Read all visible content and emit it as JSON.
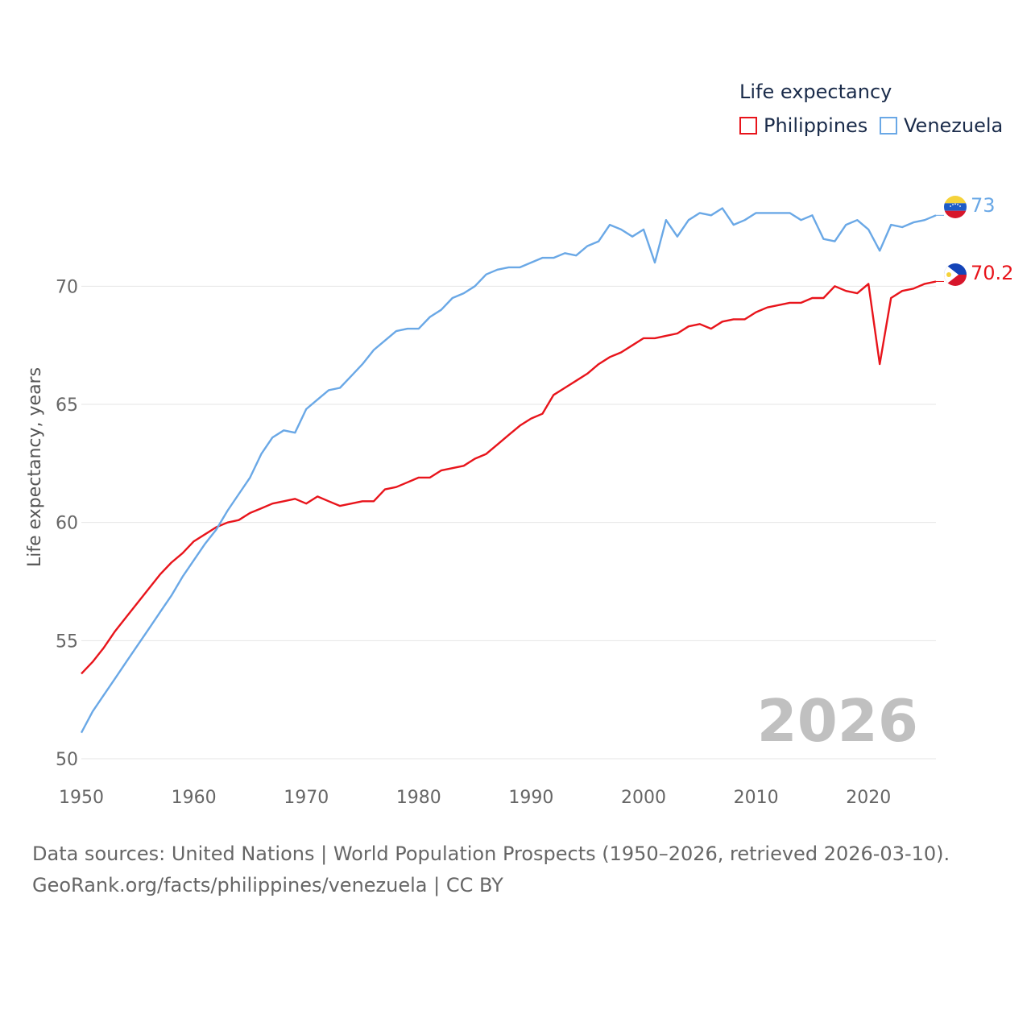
{
  "legend": {
    "title": "Life expectancy",
    "items": [
      {
        "label": "Philippines",
        "color": "#e8141b"
      },
      {
        "label": "Venezuela",
        "color": "#6aa8e6"
      }
    ]
  },
  "year_watermark": "2026",
  "source_line_1": "Data sources: United Nations | World Population Prospects (1950–2026, retrieved 2026-03-10).",
  "source_line_2": "GeoRank.org/facts/philippines/venezuela | CC BY",
  "end_labels": {
    "venezuela": "73",
    "philippines": "70.2"
  },
  "chart_data": {
    "type": "line",
    "title": "Life expectancy",
    "xlabel": "",
    "ylabel": "Life expectancy, years",
    "xlim": [
      1950,
      2026
    ],
    "ylim": [
      50,
      74
    ],
    "x_ticks": [
      1950,
      1960,
      1970,
      1980,
      1990,
      2000,
      2010,
      2020
    ],
    "y_ticks": [
      50,
      55,
      60,
      65,
      70
    ],
    "grid": true,
    "legend_position": "top-right",
    "series": [
      {
        "name": "Philippines",
        "color": "#e8141b",
        "points": [
          [
            1950,
            53.6
          ],
          [
            1951,
            54.1
          ],
          [
            1952,
            54.7
          ],
          [
            1953,
            55.4
          ],
          [
            1954,
            56.0
          ],
          [
            1955,
            56.6
          ],
          [
            1956,
            57.2
          ],
          [
            1957,
            57.8
          ],
          [
            1958,
            58.3
          ],
          [
            1959,
            58.7
          ],
          [
            1960,
            59.2
          ],
          [
            1961,
            59.5
          ],
          [
            1962,
            59.8
          ],
          [
            1963,
            60.0
          ],
          [
            1964,
            60.1
          ],
          [
            1965,
            60.4
          ],
          [
            1966,
            60.6
          ],
          [
            1967,
            60.8
          ],
          [
            1968,
            60.9
          ],
          [
            1969,
            61.0
          ],
          [
            1970,
            60.8
          ],
          [
            1971,
            61.1
          ],
          [
            1972,
            60.9
          ],
          [
            1973,
            60.7
          ],
          [
            1974,
            60.8
          ],
          [
            1975,
            60.9
          ],
          [
            1976,
            60.9
          ],
          [
            1977,
            61.4
          ],
          [
            1978,
            61.5
          ],
          [
            1979,
            61.7
          ],
          [
            1980,
            61.9
          ],
          [
            1981,
            61.9
          ],
          [
            1982,
            62.2
          ],
          [
            1983,
            62.3
          ],
          [
            1984,
            62.4
          ],
          [
            1985,
            62.7
          ],
          [
            1986,
            62.9
          ],
          [
            1987,
            63.3
          ],
          [
            1988,
            63.7
          ],
          [
            1989,
            64.1
          ],
          [
            1990,
            64.4
          ],
          [
            1991,
            64.6
          ],
          [
            1992,
            65.4
          ],
          [
            1993,
            65.7
          ],
          [
            1994,
            66.0
          ],
          [
            1995,
            66.3
          ],
          [
            1996,
            66.7
          ],
          [
            1997,
            67.0
          ],
          [
            1998,
            67.2
          ],
          [
            1999,
            67.5
          ],
          [
            2000,
            67.8
          ],
          [
            2001,
            67.8
          ],
          [
            2002,
            67.9
          ],
          [
            2003,
            68.0
          ],
          [
            2004,
            68.3
          ],
          [
            2005,
            68.4
          ],
          [
            2006,
            68.2
          ],
          [
            2007,
            68.5
          ],
          [
            2008,
            68.6
          ],
          [
            2009,
            68.6
          ],
          [
            2010,
            68.9
          ],
          [
            2011,
            69.1
          ],
          [
            2012,
            69.2
          ],
          [
            2013,
            69.3
          ],
          [
            2014,
            69.3
          ],
          [
            2015,
            69.5
          ],
          [
            2016,
            69.5
          ],
          [
            2017,
            70.0
          ],
          [
            2018,
            69.8
          ],
          [
            2019,
            69.7
          ],
          [
            2020,
            70.1
          ],
          [
            2021,
            66.7
          ],
          [
            2022,
            69.5
          ],
          [
            2023,
            69.8
          ],
          [
            2024,
            69.9
          ],
          [
            2025,
            70.1
          ],
          [
            2026,
            70.2
          ]
        ]
      },
      {
        "name": "Venezuela",
        "color": "#6aa8e6",
        "points": [
          [
            1950,
            51.1
          ],
          [
            1951,
            52.0
          ],
          [
            1952,
            52.7
          ],
          [
            1953,
            53.4
          ],
          [
            1954,
            54.1
          ],
          [
            1955,
            54.8
          ],
          [
            1956,
            55.5
          ],
          [
            1957,
            56.2
          ],
          [
            1958,
            56.9
          ],
          [
            1959,
            57.7
          ],
          [
            1960,
            58.4
          ],
          [
            1961,
            59.1
          ],
          [
            1962,
            59.7
          ],
          [
            1963,
            60.5
          ],
          [
            1964,
            61.2
          ],
          [
            1965,
            61.9
          ],
          [
            1966,
            62.9
          ],
          [
            1967,
            63.6
          ],
          [
            1968,
            63.9
          ],
          [
            1969,
            63.8
          ],
          [
            1970,
            64.8
          ],
          [
            1971,
            65.2
          ],
          [
            1972,
            65.6
          ],
          [
            1973,
            65.7
          ],
          [
            1974,
            66.2
          ],
          [
            1975,
            66.7
          ],
          [
            1976,
            67.3
          ],
          [
            1977,
            67.7
          ],
          [
            1978,
            68.1
          ],
          [
            1979,
            68.2
          ],
          [
            1980,
            68.2
          ],
          [
            1981,
            68.7
          ],
          [
            1982,
            69.0
          ],
          [
            1983,
            69.5
          ],
          [
            1984,
            69.7
          ],
          [
            1985,
            70.0
          ],
          [
            1986,
            70.5
          ],
          [
            1987,
            70.7
          ],
          [
            1988,
            70.8
          ],
          [
            1989,
            70.8
          ],
          [
            1990,
            71.0
          ],
          [
            1991,
            71.2
          ],
          [
            1992,
            71.2
          ],
          [
            1993,
            71.4
          ],
          [
            1994,
            71.3
          ],
          [
            1995,
            71.7
          ],
          [
            1996,
            71.9
          ],
          [
            1997,
            72.6
          ],
          [
            1998,
            72.4
          ],
          [
            1999,
            72.1
          ],
          [
            2000,
            72.4
          ],
          [
            2001,
            71.0
          ],
          [
            2002,
            72.8
          ],
          [
            2003,
            72.1
          ],
          [
            2004,
            72.8
          ],
          [
            2005,
            73.1
          ],
          [
            2006,
            73.0
          ],
          [
            2007,
            73.3
          ],
          [
            2008,
            72.6
          ],
          [
            2009,
            72.8
          ],
          [
            2010,
            73.1
          ],
          [
            2011,
            73.1
          ],
          [
            2012,
            73.1
          ],
          [
            2013,
            73.1
          ],
          [
            2014,
            72.8
          ],
          [
            2015,
            73.0
          ],
          [
            2016,
            72.0
          ],
          [
            2017,
            71.9
          ],
          [
            2018,
            72.6
          ],
          [
            2019,
            72.8
          ],
          [
            2020,
            72.4
          ],
          [
            2021,
            71.5
          ],
          [
            2022,
            72.6
          ],
          [
            2023,
            72.5
          ],
          [
            2024,
            72.7
          ],
          [
            2025,
            72.8
          ],
          [
            2026,
            73.0
          ]
        ]
      }
    ]
  }
}
